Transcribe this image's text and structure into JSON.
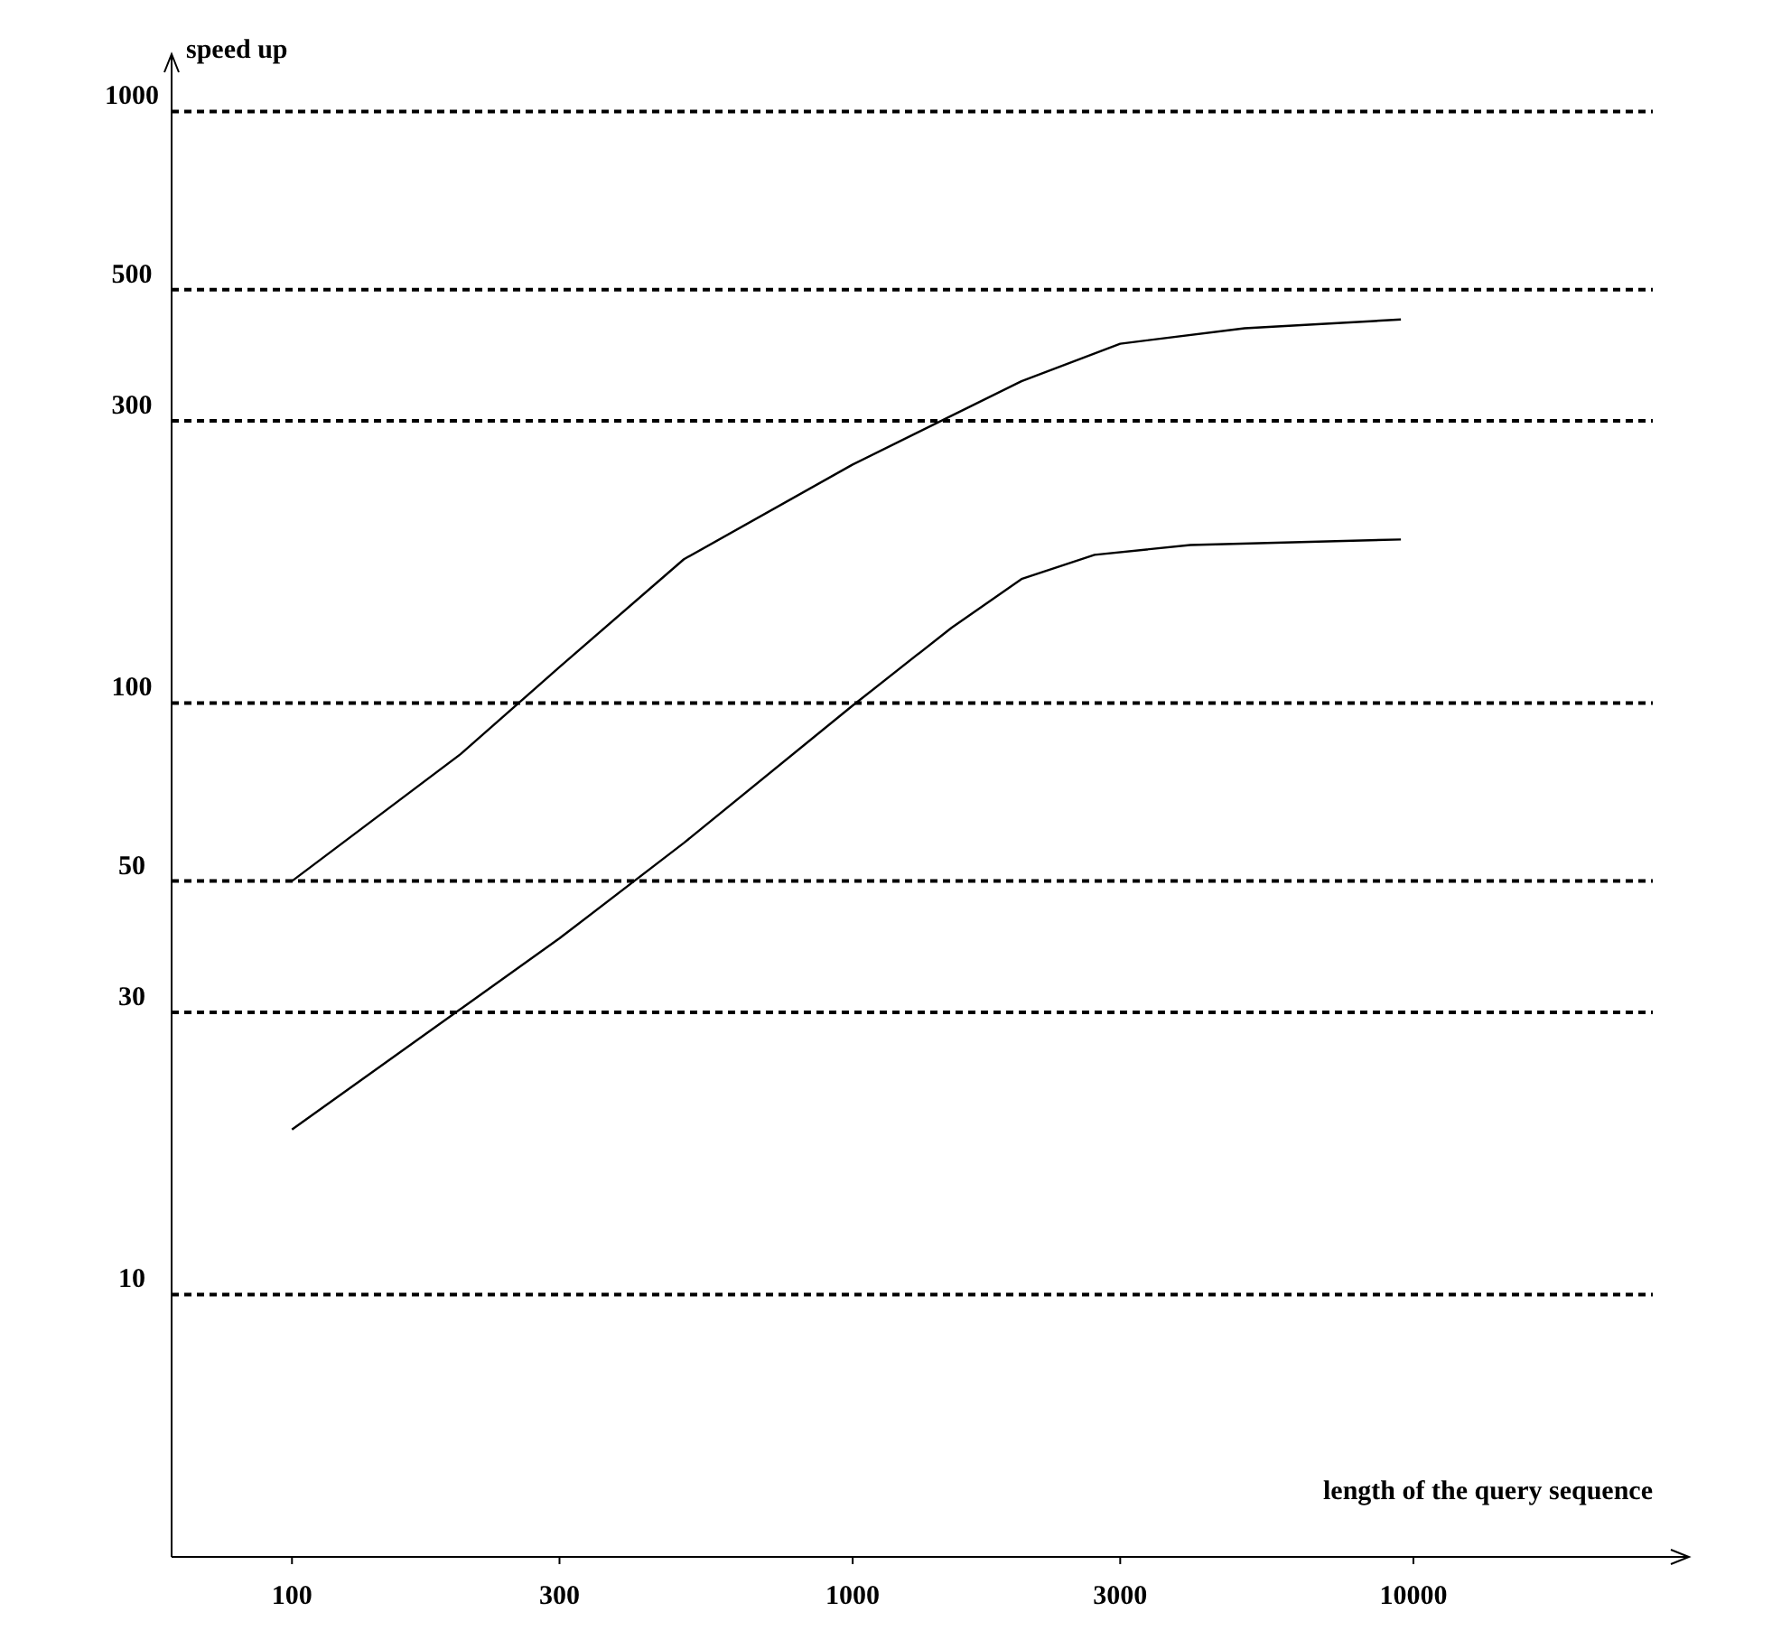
{
  "chart_data": {
    "type": "line",
    "xlabel": "length of the query sequence",
    "ylabel": "speed up",
    "log": "xy",
    "grid": "y",
    "line_style": "solid",
    "marker": "none",
    "xlim": [
      61,
      31000
    ],
    "xticks": [
      100,
      300,
      1000,
      3000,
      10000
    ],
    "ylim": [
      3.6,
      1250
    ],
    "yticks": [
      10,
      30,
      50,
      100,
      300,
      500,
      1000
    ],
    "series": [
      {
        "color": "#000000",
        "x": [
          100,
          200,
          300,
          500,
          1000,
          2000,
          3000,
          5000,
          9500
        ],
        "values": [
          50,
          82,
          115,
          175,
          253,
          350,
          405,
          430,
          445
        ]
      },
      {
        "color": "#000000",
        "x": [
          100,
          300,
          500,
          1000,
          1500,
          2000,
          2700,
          4000,
          9500
        ],
        "values": [
          19,
          40,
          58,
          99,
          134,
          162,
          178,
          185,
          189
        ]
      }
    ]
  }
}
